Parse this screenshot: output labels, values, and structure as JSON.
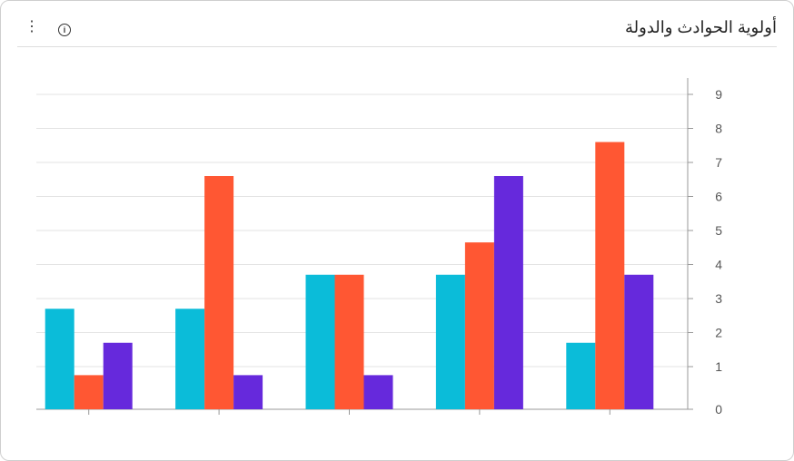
{
  "header": {
    "title": "أولوية الحوادث والدولة",
    "menu_icon": "more-vertical-icon",
    "info_icon": "info-icon"
  },
  "chart_data": {
    "type": "bar",
    "title": "أولوية الحوادث والدولة",
    "categories": [
      "",
      "",
      "",
      "",
      ""
    ],
    "series": [
      {
        "color": "#0bbcd9",
        "values": [
          2.7,
          2.7,
          3.7,
          3.7,
          1.7
        ]
      },
      {
        "color": "#ff5733",
        "values": [
          0.8,
          6.6,
          3.7,
          4.65,
          7.6
        ]
      },
      {
        "color": "#6629dc",
        "values": [
          1.7,
          0.8,
          0.8,
          6.6,
          3.7
        ]
      }
    ],
    "y_ticks": [
      "0",
      "1",
      "2",
      "3",
      "4",
      "5",
      "6",
      "7",
      "8",
      "9"
    ],
    "ylim": [
      0,
      9
    ],
    "y_axis_position": "right",
    "grid": true,
    "legend": "none"
  }
}
